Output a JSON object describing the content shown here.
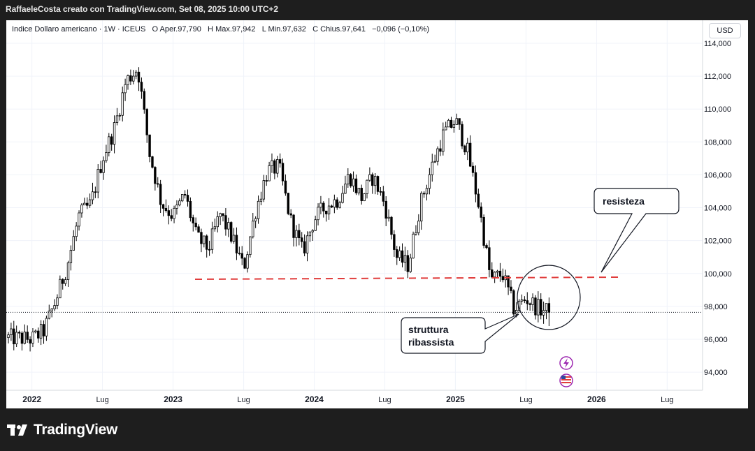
{
  "caption": "RaffaeleCosta creato con TradingView.com, Set 08, 2025 10:00 UTC+2",
  "symbol": {
    "name": "Indice Dollaro americano · 1W · ICEUS",
    "open_label": "O",
    "open": "Aper.97,790",
    "high_label": "H",
    "high": "Max.97,942",
    "low_label": "L",
    "low": "Min.97,632",
    "close_label": "C",
    "close": "Chius.97,641",
    "change": "−0,096 (−0,10%)"
  },
  "currency_button": "USD",
  "footer_brand": "TradingView",
  "colors": {
    "candle": "#000000",
    "resistance": "#e03c3c",
    "frame_bg": "#1e1e1e"
  },
  "icons": [
    "lightning-icon",
    "us-flag-icon"
  ],
  "chart_data": {
    "type": "candlestick",
    "interval": "1W",
    "ylim": [
      92900,
      115400
    ],
    "y_ticks": [
      {
        "value": 94000,
        "label": "94,000"
      },
      {
        "value": 96000,
        "label": "96,000"
      },
      {
        "value": 98000,
        "label": "98,000"
      },
      {
        "value": 100000,
        "label": "100,000"
      },
      {
        "value": 102000,
        "label": "102,000"
      },
      {
        "value": 104000,
        "label": "104,000"
      },
      {
        "value": 106000,
        "label": "106,000"
      },
      {
        "value": 108000,
        "label": "108,000"
      },
      {
        "value": 110000,
        "label": "110,000"
      },
      {
        "value": 112000,
        "label": "112,000"
      },
      {
        "value": 114000,
        "label": "114,000"
      }
    ],
    "x_ticks": [
      {
        "date": "2022-01",
        "label": "2022",
        "year": true
      },
      {
        "date": "2022-07",
        "label": "Lug",
        "year": false
      },
      {
        "date": "2023-01",
        "label": "2023",
        "year": true
      },
      {
        "date": "2023-07",
        "label": "Lug",
        "year": false
      },
      {
        "date": "2024-01",
        "label": "2024",
        "year": true
      },
      {
        "date": "2024-07",
        "label": "Lug",
        "year": false
      },
      {
        "date": "2025-01",
        "label": "2025",
        "year": true
      },
      {
        "date": "2025-07",
        "label": "Lug",
        "year": false
      },
      {
        "date": "2026-01",
        "label": "2026",
        "year": true
      },
      {
        "date": "2026-07",
        "label": "Lug",
        "year": false
      }
    ],
    "x_start": "2021-11",
    "x_end": "2026-09",
    "path": [
      [
        "2021-11",
        96100
      ],
      [
        "2022-01",
        96000
      ],
      [
        "2022-02",
        96500
      ],
      [
        "2022-03",
        98300
      ],
      [
        "2022-04",
        100500
      ],
      [
        "2022-05",
        103500
      ],
      [
        "2022-06",
        104200
      ],
      [
        "2022-07",
        107000
      ],
      [
        "2022-08",
        108800
      ],
      [
        "2022-09",
        111700
      ],
      [
        "2022-10",
        112500
      ],
      [
        "2022-11",
        107300
      ],
      [
        "2022-12",
        104300
      ],
      [
        "2023-01",
        103500
      ],
      [
        "2023-02",
        104800
      ],
      [
        "2023-03",
        102200
      ],
      [
        "2023-04",
        101500
      ],
      [
        "2023-05",
        103600
      ],
      [
        "2023-06",
        102200
      ],
      [
        "2023-07",
        100300
      ],
      [
        "2023-08",
        103800
      ],
      [
        "2023-09",
        106200
      ],
      [
        "2023-10",
        106500
      ],
      [
        "2023-11",
        103200
      ],
      [
        "2023-12",
        101300
      ],
      [
        "2024-01",
        103300
      ],
      [
        "2024-02",
        104100
      ],
      [
        "2024-03",
        104500
      ],
      [
        "2024-04",
        106000
      ],
      [
        "2024-05",
        104600
      ],
      [
        "2024-06",
        105900
      ],
      [
        "2024-07",
        104200
      ],
      [
        "2024-08",
        101000
      ],
      [
        "2024-09",
        100500
      ],
      [
        "2024-10",
        104200
      ],
      [
        "2024-11",
        106500
      ],
      [
        "2024-12",
        108500
      ],
      [
        "2025-01",
        109300
      ],
      [
        "2025-02",
        107500
      ],
      [
        "2025-03",
        104100
      ],
      [
        "2025-04",
        99600
      ],
      [
        "2025-05",
        100000
      ],
      [
        "2025-06",
        97800
      ],
      [
        "2025-07",
        98500
      ],
      [
        "2025-08",
        97900
      ],
      [
        "2025-09",
        97640
      ]
    ],
    "last_price": 97641,
    "annotations": [
      {
        "id": "resistance",
        "text": "resisteza",
        "level": 100000
      },
      {
        "id": "downtrend",
        "lines": [
          "struttura",
          "ribassista"
        ]
      }
    ]
  }
}
